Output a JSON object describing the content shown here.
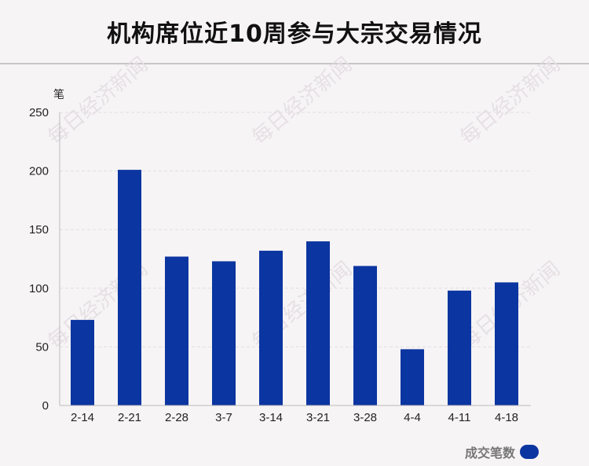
{
  "title": "机构席位近10周参与大宗交易情况",
  "unit_label": "笔",
  "watermark_text": "每日经济新闻",
  "legend": {
    "label": "成交笔数",
    "color": "#0b35a0"
  },
  "chart_data": {
    "type": "bar",
    "title": "机构席位近10周参与大宗交易情况",
    "xlabel": "",
    "ylabel": "笔",
    "categories": [
      "2-14",
      "2-21",
      "2-28",
      "3-7",
      "3-14",
      "3-21",
      "3-28",
      "4-4",
      "4-11",
      "4-18"
    ],
    "series": [
      {
        "name": "成交笔数",
        "values": [
          73,
          201,
          127,
          123,
          132,
          140,
          119,
          48,
          98,
          105
        ]
      }
    ],
    "ylim": [
      0,
      250
    ],
    "yticks": [
      0,
      50,
      100,
      150,
      200,
      250
    ],
    "grid": true,
    "legend_position": "bottom-right",
    "bar_color": "#0b35a0"
  }
}
